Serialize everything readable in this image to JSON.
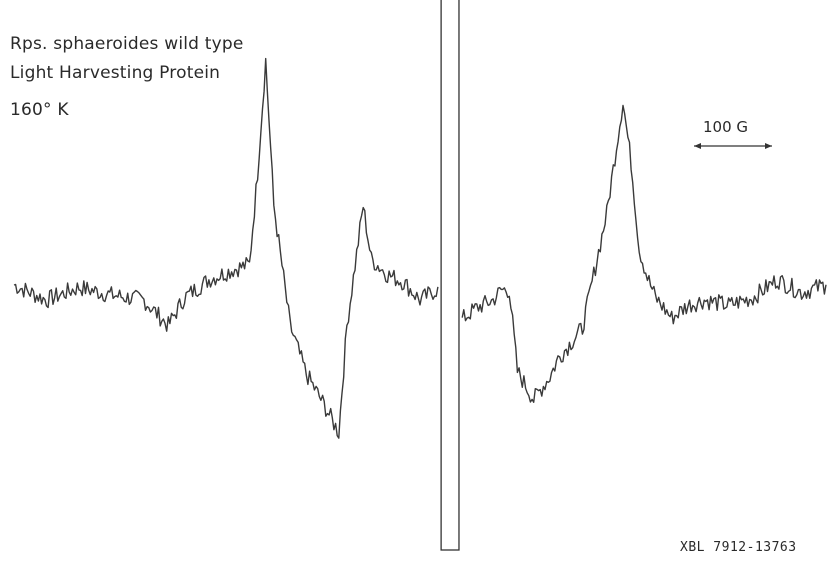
{
  "chart_data": {
    "type": "line",
    "title_lines": [
      "Rps. sphaeroides wild type",
      "Light Harvesting Protein",
      "160° K"
    ],
    "xlabel": "",
    "ylabel": "",
    "scale_bar": {
      "label": "100 G"
    },
    "catalog_number": "XBL 7912-13763",
    "grid": false,
    "legend": "none",
    "x_range": [
      0,
      100
    ],
    "y_range": [
      -1,
      1
    ],
    "series": [
      {
        "x": [
          0,
          4,
          8,
          12,
          16,
          19,
          21,
          24,
          27,
          29,
          30,
          31,
          32,
          34,
          36,
          38,
          40,
          41,
          43,
          44,
          46,
          48,
          50,
          52,
          53,
          54,
          55,
          57,
          59,
          60,
          61,
          62,
          64,
          66,
          67,
          70,
          73,
          75,
          76,
          77,
          78,
          79,
          81,
          83,
          85,
          88,
          91,
          94,
          97,
          100
        ],
        "y": [
          0.04,
          -0.02,
          0.03,
          0.0,
          -0.02,
          -0.12,
          -0.01,
          0.06,
          0.1,
          0.12,
          0.48,
          0.92,
          0.35,
          -0.12,
          -0.31,
          -0.42,
          -0.54,
          -0.12,
          0.35,
          0.14,
          0.08,
          0.05,
          -0.02,
          0.02,
          0.0,
          -0.03,
          -0.1,
          -0.05,
          -0.02,
          0.02,
          0.02,
          -0.3,
          -0.41,
          -0.32,
          -0.25,
          -0.13,
          0.32,
          0.76,
          0.52,
          0.18,
          0.07,
          -0.01,
          -0.09,
          -0.04,
          -0.02,
          -0.04,
          -0.01,
          0.06,
          0.01,
          0.04
        ]
      }
    ],
    "reference_marker": {
      "type": "rectangle",
      "x_range": [
        52.6,
        54.8
      ],
      "y_range": [
        -1.0,
        1.25
      ]
    }
  }
}
